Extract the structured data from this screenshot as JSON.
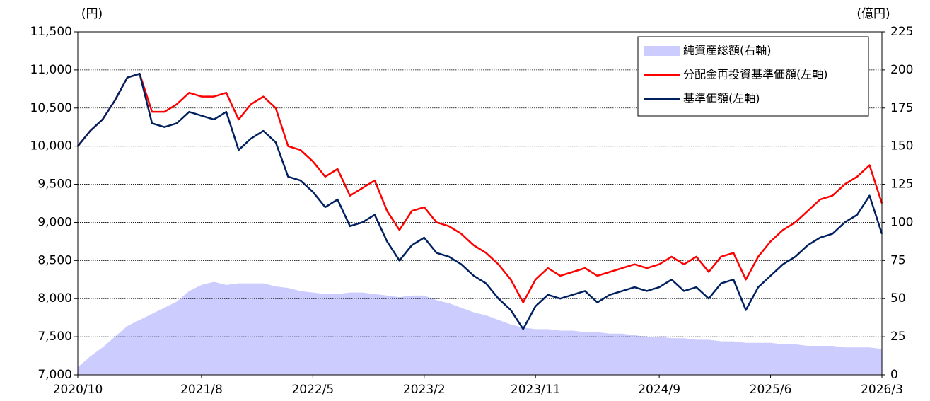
{
  "chart_data": {
    "type": "line-area",
    "ylabel": "(円)",
    "y2label": "(億円)",
    "x": [
      "2020/10",
      "2020/11",
      "2020/12",
      "2021/1",
      "2021/2",
      "2021/3",
      "2021/4",
      "2021/5",
      "2021/6",
      "2021/7",
      "2021/8",
      "2021/9",
      "2021/10",
      "2021/11",
      "2021/12",
      "2022/1",
      "2022/2",
      "2022/3",
      "2022/4",
      "2022/5",
      "2022/6",
      "2022/7",
      "2022/8",
      "2022/9",
      "2022/10",
      "2022/11",
      "2022/12",
      "2023/1",
      "2023/2",
      "2023/3",
      "2023/4",
      "2023/5",
      "2023/6",
      "2023/7",
      "2023/8",
      "2023/9",
      "2023/10",
      "2023/11",
      "2023/12",
      "2024/1",
      "2024/2",
      "2024/3",
      "2024/4",
      "2024/5",
      "2024/6",
      "2024/7",
      "2024/8",
      "2024/9",
      "2024/10",
      "2024/11",
      "2024/12",
      "2025/1",
      "2025/2",
      "2025/3",
      "2025/4",
      "2025/5",
      "2025/6",
      "2025/7",
      "2025/8",
      "2025/9",
      "2025/10",
      "2025/11",
      "2025/12",
      "2026/1",
      "2026/2",
      "2026/3"
    ],
    "xticks": [
      "2020/10",
      "2021/8",
      "2022/5",
      "2023/2",
      "2023/11",
      "2024/9",
      "2025/6",
      "2026/3"
    ],
    "ylim": [
      7000,
      11500
    ],
    "yticks": [
      {
        "value": 7000,
        "label": "7,000"
      },
      {
        "value": 7500,
        "label": "7,500"
      },
      {
        "value": 8000,
        "label": "8,000"
      },
      {
        "value": 8500,
        "label": "8,500"
      },
      {
        "value": 9000,
        "label": "9,000"
      },
      {
        "value": 9500,
        "label": "9,500"
      },
      {
        "value": 10000,
        "label": "10,000"
      },
      {
        "value": 10500,
        "label": "10,500"
      },
      {
        "value": 11000,
        "label": "11,000"
      },
      {
        "value": 11500,
        "label": "11,500"
      }
    ],
    "y2lim": [
      0,
      225
    ],
    "y2ticks": [
      0,
      25,
      50,
      75,
      100,
      125,
      150,
      175,
      200,
      225
    ],
    "grid": true,
    "legend": "upper right",
    "series": [
      {
        "name": "純資産総額(右軸)",
        "type": "area",
        "axis": "y2",
        "color": "#ccccff",
        "values": [
          5,
          12,
          18,
          25,
          32,
          36,
          40,
          44,
          48,
          55,
          59,
          61,
          59,
          60,
          60,
          60,
          58,
          57,
          55,
          54,
          53,
          53,
          54,
          54,
          53,
          52,
          51,
          52,
          52,
          49,
          47,
          44,
          41,
          39,
          36,
          33,
          31,
          30,
          30,
          29,
          29,
          28,
          28,
          27,
          27,
          26,
          25,
          25,
          24,
          24,
          23,
          23,
          22,
          22,
          21,
          21,
          21,
          20,
          20,
          19,
          19,
          19,
          18,
          18,
          18,
          17
        ]
      },
      {
        "name": "分配金再投資基準価額(左軸)",
        "type": "line",
        "color": "#ff0000",
        "values": [
          10000,
          10200,
          10350,
          10600,
          10900,
          10950,
          10450,
          10450,
          10550,
          10700,
          10650,
          10650,
          10700,
          10350,
          10550,
          10650,
          10500,
          10000,
          9950,
          9800,
          9600,
          9700,
          9350,
          9450,
          9550,
          9150,
          8900,
          9150,
          9200,
          9000,
          8950,
          8850,
          8700,
          8600,
          8450,
          8250,
          7950,
          8250,
          8400,
          8300,
          8350,
          8400,
          8300,
          8350,
          8400,
          8450,
          8400,
          8450,
          8550,
          8450,
          8550,
          8350,
          8550,
          8600,
          8250,
          8550,
          8750,
          8900,
          9000,
          9150,
          9300,
          9350,
          9500,
          9600,
          9750,
          9250
        ]
      },
      {
        "name": "基準価額(左軸)",
        "type": "line",
        "color": "#002060",
        "values": [
          10000,
          10200,
          10350,
          10600,
          10900,
          10950,
          10300,
          10250,
          10300,
          10450,
          10400,
          10350,
          10450,
          9950,
          10100,
          10200,
          10050,
          9600,
          9550,
          9400,
          9200,
          9300,
          8950,
          9000,
          9100,
          8750,
          8500,
          8700,
          8800,
          8600,
          8550,
          8450,
          8300,
          8200,
          8000,
          7850,
          7600,
          7900,
          8050,
          8000,
          8050,
          8100,
          7950,
          8050,
          8100,
          8150,
          8100,
          8150,
          8250,
          8100,
          8150,
          8000,
          8200,
          8250,
          7850,
          8150,
          8300,
          8450,
          8550,
          8700,
          8800,
          8850,
          9000,
          9100,
          9350,
          8850
        ]
      }
    ]
  }
}
